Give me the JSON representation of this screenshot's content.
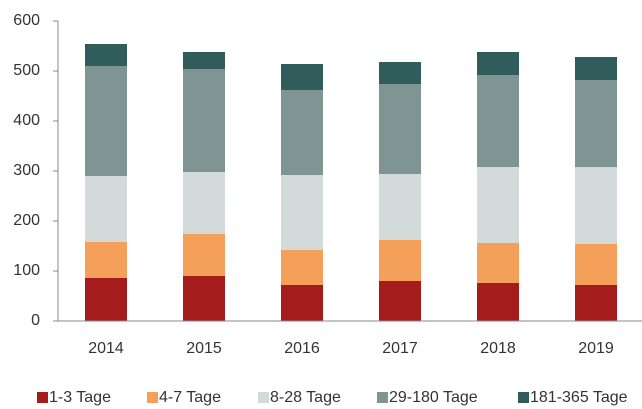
{
  "chart_data": {
    "type": "stacked_bar",
    "categories": [
      "2014",
      "2015",
      "2016",
      "2017",
      "2018",
      "2019"
    ],
    "series": [
      {
        "name": "1-3 Tage",
        "color": "#a51c1c",
        "values": [
          86,
          90,
          72,
          80,
          76,
          72
        ]
      },
      {
        "name": "4-7 Tage",
        "color": "#f5a05a",
        "values": [
          72,
          84,
          70,
          82,
          80,
          82
        ]
      },
      {
        "name": "8-28 Tage",
        "color": "#d3dada",
        "values": [
          132,
          124,
          150,
          132,
          152,
          154
        ]
      },
      {
        "name": "29-180 Tage",
        "color": "#7f9593",
        "values": [
          220,
          206,
          170,
          180,
          184,
          174
        ]
      },
      {
        "name": "181-365 Tage",
        "color": "#305c5c",
        "values": [
          44,
          34,
          52,
          44,
          46,
          46
        ]
      }
    ],
    "ylim": [
      0,
      600
    ],
    "yticks": [
      0,
      100,
      200,
      300,
      400,
      500,
      600
    ],
    "grid": false,
    "legend": "bottom"
  }
}
